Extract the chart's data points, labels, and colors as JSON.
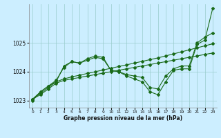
{
  "xlabel": "Graphe pression niveau de la mer (hPa)",
  "ylim": [
    1022.75,
    1026.35
  ],
  "xlim": [
    -0.5,
    23.5
  ],
  "yticks": [
    1023,
    1024,
    1025
  ],
  "xticks": [
    0,
    1,
    2,
    3,
    4,
    5,
    6,
    7,
    8,
    9,
    10,
    11,
    12,
    13,
    14,
    15,
    16,
    17,
    18,
    19,
    20,
    21,
    22,
    23
  ],
  "bg_color": "#cceeff",
  "grid_color": "#99cccc",
  "line_color": "#1a6b1a",
  "series": [
    {
      "x": [
        0,
        1,
        2,
        3,
        4,
        5,
        6,
        7,
        8,
        9,
        10,
        11,
        12,
        13,
        14,
        15,
        16,
        17,
        18,
        19,
        20,
        21,
        22,
        23
      ],
      "y": [
        1023.05,
        1023.2,
        1023.4,
        1023.6,
        1023.7,
        1023.75,
        1023.8,
        1023.85,
        1023.9,
        1023.95,
        1024.0,
        1024.05,
        1024.1,
        1024.15,
        1024.2,
        1024.25,
        1024.3,
        1024.35,
        1024.4,
        1024.45,
        1024.5,
        1024.55,
        1024.6,
        1024.65
      ]
    },
    {
      "x": [
        0,
        1,
        2,
        3,
        4,
        5,
        6,
        7,
        8,
        9,
        10,
        11,
        12,
        13,
        14,
        15,
        16,
        17,
        18,
        19,
        20,
        21,
        22,
        23
      ],
      "y": [
        1023.05,
        1023.25,
        1023.45,
        1023.65,
        1023.75,
        1023.82,
        1023.88,
        1023.94,
        1024.0,
        1024.06,
        1024.12,
        1024.18,
        1024.24,
        1024.3,
        1024.36,
        1024.42,
        1024.48,
        1024.55,
        1024.62,
        1024.69,
        1024.76,
        1024.83,
        1024.9,
        1024.97
      ]
    },
    {
      "x": [
        0,
        1,
        2,
        3,
        4,
        5,
        6,
        7,
        8,
        9,
        10,
        11,
        12,
        13,
        14,
        15,
        16,
        17,
        18,
        19,
        20,
        21,
        22,
        23
      ],
      "y": [
        1023.05,
        1023.3,
        1023.5,
        1023.65,
        1024.2,
        1024.35,
        1024.3,
        1024.4,
        1024.5,
        1024.45,
        1024.05,
        1024.0,
        1023.9,
        1023.85,
        1023.8,
        1023.45,
        1023.4,
        1023.85,
        1024.1,
        1024.2,
        1024.2,
        1025.0,
        1025.2,
        1025.35
      ]
    },
    {
      "x": [
        0,
        1,
        2,
        3,
        4,
        5,
        6,
        7,
        8,
        9,
        10,
        11,
        12,
        13,
        14,
        15,
        16,
        17,
        18,
        19,
        20,
        21,
        22,
        23
      ],
      "y": [
        1023.0,
        1023.3,
        1023.5,
        1023.7,
        1024.15,
        1024.35,
        1024.3,
        1024.45,
        1024.55,
        1024.5,
        1024.05,
        1024.0,
        1023.85,
        1023.75,
        1023.65,
        1023.3,
        1023.2,
        1023.65,
        1024.05,
        1024.1,
        1024.1,
        1024.95,
        1025.1,
        1026.2
      ]
    }
  ]
}
